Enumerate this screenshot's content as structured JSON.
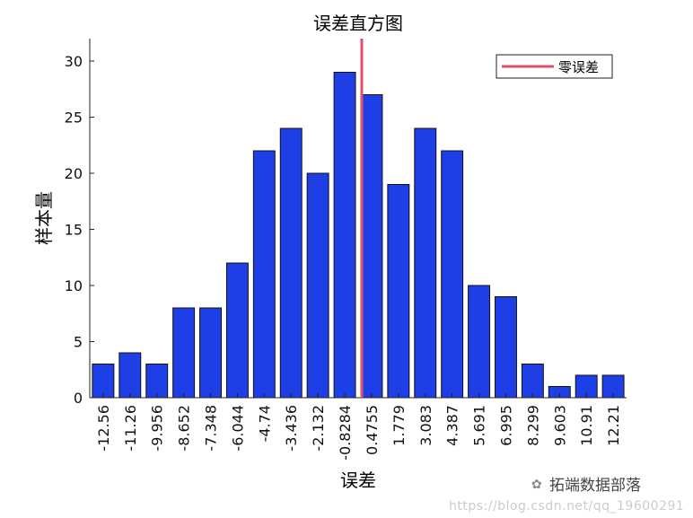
{
  "chart_data": {
    "type": "bar",
    "title": "误差直方图",
    "xlabel": "误差",
    "ylabel": "样本量",
    "categories": [
      "-12.56",
      "-11.26",
      "-9.956",
      "-8.652",
      "-7.348",
      "-6.044",
      "-4.74",
      "-3.436",
      "-2.132",
      "-0.8284",
      "0.4755",
      "1.779",
      "3.083",
      "4.387",
      "5.691",
      "6.995",
      "8.299",
      "9.603",
      "10.91",
      "12.21"
    ],
    "values": [
      3,
      4,
      3,
      8,
      8,
      12,
      22,
      24,
      20,
      29,
      27,
      19,
      24,
      22,
      10,
      9,
      3,
      1,
      2,
      2
    ],
    "ylim": [
      0,
      32
    ],
    "yticks": [
      0,
      5,
      10,
      15,
      20,
      25,
      30
    ],
    "xlim": [
      -13.21,
      12.86
    ],
    "grid": false,
    "bar_color": "#1f3fe6",
    "reference_line": {
      "name": "零误差",
      "x": 0,
      "color": "#e0506a"
    },
    "legend_placement": "top-right"
  },
  "watermark": {
    "brand": "拓端数据部落",
    "url": "https://blog.csdn.net/qq_19600291"
  }
}
